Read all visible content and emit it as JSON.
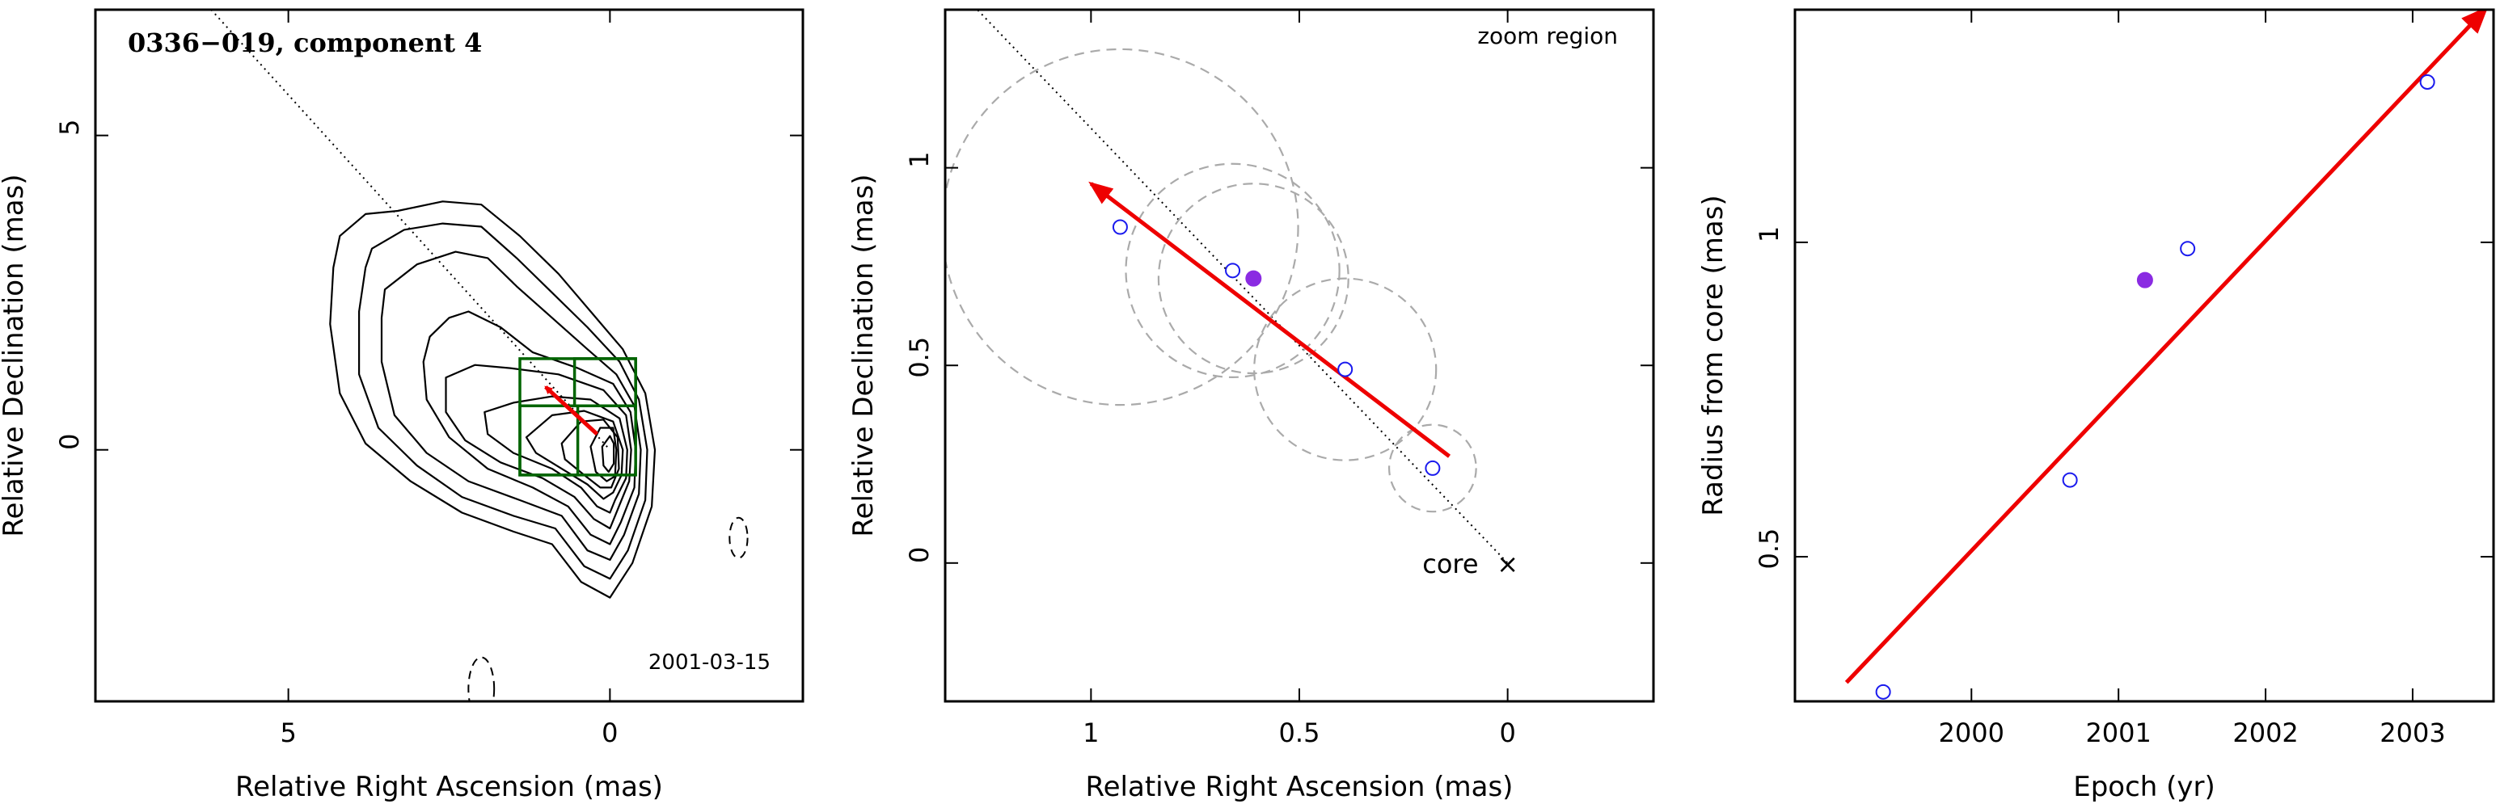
{
  "chart_data": [
    {
      "type": "contour",
      "title": "0336−019, component 4",
      "date_label": "2001-03-15",
      "xlabel": "Relative Right Ascension (mas)",
      "ylabel": "Relative Declination (mas)",
      "xlim": [
        8,
        -3
      ],
      "ylim": [
        -4,
        7
      ],
      "x_ticks": [
        {
          "v": 5,
          "label": "5"
        },
        {
          "v": 0,
          "label": "0"
        }
      ],
      "y_ticks": [
        {
          "v": 5,
          "label": "5"
        },
        {
          "v": 0,
          "label": "0"
        }
      ],
      "contours": [
        [
          [
            4.2,
            3.4
          ],
          [
            3.8,
            3.75
          ],
          [
            3.3,
            3.8
          ],
          [
            2.6,
            3.95
          ],
          [
            2.0,
            3.9
          ],
          [
            1.4,
            3.4
          ],
          [
            0.8,
            2.8
          ],
          [
            0.3,
            2.2
          ],
          [
            -0.2,
            1.6
          ],
          [
            -0.55,
            0.9
          ],
          [
            -0.7,
            0.0
          ],
          [
            -0.65,
            -0.9
          ],
          [
            -0.35,
            -1.8
          ],
          [
            0.0,
            -2.35
          ],
          [
            0.45,
            -2.1
          ],
          [
            0.9,
            -1.5
          ],
          [
            1.5,
            -1.3
          ],
          [
            2.3,
            -1.0
          ],
          [
            3.1,
            -0.5
          ],
          [
            3.8,
            0.1
          ],
          [
            4.2,
            0.9
          ],
          [
            4.35,
            2.0
          ],
          [
            4.3,
            2.9
          ],
          [
            4.2,
            3.4
          ]
        ],
        [
          [
            3.7,
            3.2
          ],
          [
            3.2,
            3.5
          ],
          [
            2.6,
            3.6
          ],
          [
            2.0,
            3.55
          ],
          [
            1.45,
            3.05
          ],
          [
            0.9,
            2.5
          ],
          [
            0.35,
            1.95
          ],
          [
            -0.15,
            1.4
          ],
          [
            -0.45,
            0.8
          ],
          [
            -0.58,
            0.0
          ],
          [
            -0.55,
            -0.8
          ],
          [
            -0.28,
            -1.6
          ],
          [
            0.0,
            -2.05
          ],
          [
            0.4,
            -1.85
          ],
          [
            0.85,
            -1.25
          ],
          [
            1.5,
            -1.05
          ],
          [
            2.3,
            -0.75
          ],
          [
            3.0,
            -0.25
          ],
          [
            3.6,
            0.35
          ],
          [
            3.9,
            1.2
          ],
          [
            3.9,
            2.2
          ],
          [
            3.8,
            2.9
          ],
          [
            3.7,
            3.2
          ]
        ],
        [
          [
            3.5,
            2.55
          ],
          [
            3.0,
            2.95
          ],
          [
            2.4,
            3.15
          ],
          [
            1.9,
            3.05
          ],
          [
            1.45,
            2.6
          ],
          [
            0.9,
            2.1
          ],
          [
            0.35,
            1.6
          ],
          [
            -0.1,
            1.2
          ],
          [
            -0.38,
            0.7
          ],
          [
            -0.48,
            0.0
          ],
          [
            -0.45,
            -0.7
          ],
          [
            -0.22,
            -1.35
          ],
          [
            0.0,
            -1.75
          ],
          [
            0.35,
            -1.6
          ],
          [
            0.75,
            -1.05
          ],
          [
            1.4,
            -0.8
          ],
          [
            2.2,
            -0.5
          ],
          [
            2.85,
            -0.05
          ],
          [
            3.35,
            0.55
          ],
          [
            3.55,
            1.4
          ],
          [
            3.55,
            2.1
          ],
          [
            3.5,
            2.55
          ]
        ],
        [
          [
            2.8,
            1.8
          ],
          [
            2.5,
            2.1
          ],
          [
            2.2,
            2.2
          ],
          [
            1.7,
            1.95
          ],
          [
            1.2,
            1.55
          ],
          [
            0.5,
            1.3
          ],
          [
            -0.05,
            1.05
          ],
          [
            -0.32,
            0.6
          ],
          [
            -0.4,
            0.0
          ],
          [
            -0.38,
            -0.6
          ],
          [
            -0.17,
            -1.15
          ],
          [
            0.0,
            -1.5
          ],
          [
            0.3,
            -1.35
          ],
          [
            0.65,
            -0.9
          ],
          [
            1.2,
            -0.6
          ],
          [
            1.9,
            -0.3
          ],
          [
            2.5,
            0.2
          ],
          [
            2.85,
            0.8
          ],
          [
            2.9,
            1.4
          ],
          [
            2.8,
            1.8
          ]
        ],
        [
          [
            2.55,
            1.15
          ],
          [
            2.1,
            1.35
          ],
          [
            1.55,
            1.3
          ],
          [
            0.8,
            1.2
          ],
          [
            0.1,
            0.95
          ],
          [
            -0.25,
            0.55
          ],
          [
            -0.33,
            0.0
          ],
          [
            -0.3,
            -0.5
          ],
          [
            -0.12,
            -0.95
          ],
          [
            0.0,
            -1.25
          ],
          [
            0.25,
            -1.1
          ],
          [
            0.55,
            -0.75
          ],
          [
            1.05,
            -0.45
          ],
          [
            1.7,
            -0.2
          ],
          [
            2.25,
            0.15
          ],
          [
            2.55,
            0.6
          ],
          [
            2.55,
            1.15
          ]
        ],
        [
          [
            1.95,
            0.6
          ],
          [
            1.5,
            0.75
          ],
          [
            0.9,
            0.85
          ],
          [
            0.3,
            0.8
          ],
          [
            -0.15,
            0.5
          ],
          [
            -0.27,
            0.0
          ],
          [
            -0.25,
            -0.45
          ],
          [
            -0.08,
            -0.8
          ],
          [
            0.0,
            -1.0
          ],
          [
            0.2,
            -0.9
          ],
          [
            0.45,
            -0.6
          ],
          [
            0.9,
            -0.3
          ],
          [
            1.5,
            -0.05
          ],
          [
            1.9,
            0.25
          ],
          [
            1.95,
            0.6
          ]
        ],
        [
          [
            1.3,
            0.2
          ],
          [
            0.9,
            0.55
          ],
          [
            0.4,
            0.62
          ],
          [
            -0.05,
            0.45
          ],
          [
            -0.2,
            0.0
          ],
          [
            -0.18,
            -0.4
          ],
          [
            -0.05,
            -0.68
          ],
          [
            0.1,
            -0.78
          ],
          [
            0.35,
            -0.55
          ],
          [
            0.75,
            -0.3
          ],
          [
            1.15,
            -0.05
          ],
          [
            1.3,
            0.2
          ]
        ],
        [
          [
            0.75,
            0.1
          ],
          [
            0.45,
            0.45
          ],
          [
            0.1,
            0.48
          ],
          [
            -0.12,
            0.2
          ],
          [
            -0.14,
            -0.3
          ],
          [
            -0.02,
            -0.6
          ],
          [
            0.15,
            -0.6
          ],
          [
            0.4,
            -0.4
          ],
          [
            0.7,
            -0.15
          ],
          [
            0.75,
            0.1
          ]
        ],
        [
          [
            0.3,
            0.05
          ],
          [
            0.15,
            0.35
          ],
          [
            -0.05,
            0.35
          ],
          [
            -0.1,
            0.0
          ],
          [
            -0.08,
            -0.42
          ],
          [
            0.05,
            -0.5
          ],
          [
            0.22,
            -0.35
          ],
          [
            0.3,
            0.05
          ]
        ],
        [
          [
            0.12,
            0.05
          ],
          [
            0.0,
            0.22
          ],
          [
            -0.06,
            0.1
          ],
          [
            -0.06,
            -0.22
          ],
          [
            0.02,
            -0.35
          ],
          [
            0.1,
            -0.25
          ],
          [
            0.12,
            0.05
          ]
        ]
      ],
      "dashed_contours": [
        {
          "cx": 2.0,
          "cy": -3.8,
          "rx": 0.2,
          "ry": 0.5
        },
        {
          "cx": -2.0,
          "cy": -1.4,
          "rx": 0.14,
          "ry": 0.32
        }
      ],
      "jet_axis": [
        [
          6.2,
          7.0
        ],
        [
          0.0,
          0.0
        ]
      ],
      "velocity_arrow": {
        "from": [
          0.2,
          0.25
        ],
        "to": [
          1.0,
          1.0
        ]
      },
      "zoom_boxes": [
        {
          "x1": 1.4,
          "x2": -0.4,
          "y1": -0.4,
          "y2": 1.45
        },
        {
          "x1": 1.4,
          "x2": 0.5,
          "y1": -0.4,
          "y2": 0.7
        },
        {
          "x1": 0.55,
          "x2": -0.4,
          "y1": 0.7,
          "y2": 1.45
        }
      ]
    },
    {
      "type": "scatter",
      "xlabel": "Relative Right Ascension (mas)",
      "ylabel": "Relative Declination (mas)",
      "annotation": "zoom region",
      "core_label": "core",
      "core_marker": "×",
      "xlim": [
        1.35,
        -0.35
      ],
      "ylim": [
        -0.35,
        1.4
      ],
      "x_ticks": [
        {
          "v": 1,
          "label": "1"
        },
        {
          "v": 0.5,
          "label": "0.5"
        },
        {
          "v": 0,
          "label": "0"
        }
      ],
      "y_ticks": [
        {
          "v": 0,
          "label": "0"
        },
        {
          "v": 0.5,
          "label": "0.5"
        },
        {
          "v": 1,
          "label": "1"
        }
      ],
      "points": [
        {
          "x": 0.93,
          "y": 0.85,
          "r": 0.45,
          "filled": false
        },
        {
          "x": 0.66,
          "y": 0.74,
          "r": 0.27,
          "filled": false
        },
        {
          "x": 0.61,
          "y": 0.72,
          "r": 0.24,
          "filled": true
        },
        {
          "x": 0.39,
          "y": 0.49,
          "r": 0.23,
          "filled": false
        },
        {
          "x": 0.18,
          "y": 0.24,
          "r": 0.11,
          "filled": false
        }
      ],
      "jet_axis": [
        [
          1.3,
          1.43
        ],
        [
          0.0,
          0.0
        ]
      ],
      "velocity_arrow": {
        "from": [
          0.14,
          0.27
        ],
        "to": [
          1.0,
          0.96
        ]
      }
    },
    {
      "type": "scatter",
      "xlabel": "Epoch (yr)",
      "ylabel": "Radius from core (mas)",
      "xlim": [
        1998.8,
        2003.55
      ],
      "ylim": [
        0.27,
        1.37
      ],
      "x_ticks": [
        {
          "v": 2000,
          "label": "2000"
        },
        {
          "v": 2001,
          "label": "2001"
        },
        {
          "v": 2002,
          "label": "2002"
        },
        {
          "v": 2003,
          "label": "2003"
        }
      ],
      "y_ticks": [
        {
          "v": 0.5,
          "label": "0.5"
        },
        {
          "v": 1,
          "label": "1"
        }
      ],
      "points": [
        {
          "x": 1999.4,
          "y": 0.285,
          "filled": false
        },
        {
          "x": 2000.67,
          "y": 0.622,
          "filled": false
        },
        {
          "x": 2001.18,
          "y": 0.94,
          "filled": true
        },
        {
          "x": 2001.47,
          "y": 0.99,
          "filled": false
        },
        {
          "x": 2003.1,
          "y": 1.255,
          "filled": false
        }
      ],
      "fit_line": {
        "from": [
          1999.15,
          0.3
        ],
        "to": [
          2003.5,
          1.372
        ]
      }
    }
  ],
  "colors": {
    "axis": "#000000",
    "contour": "#000000",
    "arrow": "#ee0000",
    "box": "#006400",
    "circle": "#aaaaaa",
    "point_open": "#1a1aee",
    "point_filled": "#8a2be2",
    "axis_line": "#000000"
  }
}
